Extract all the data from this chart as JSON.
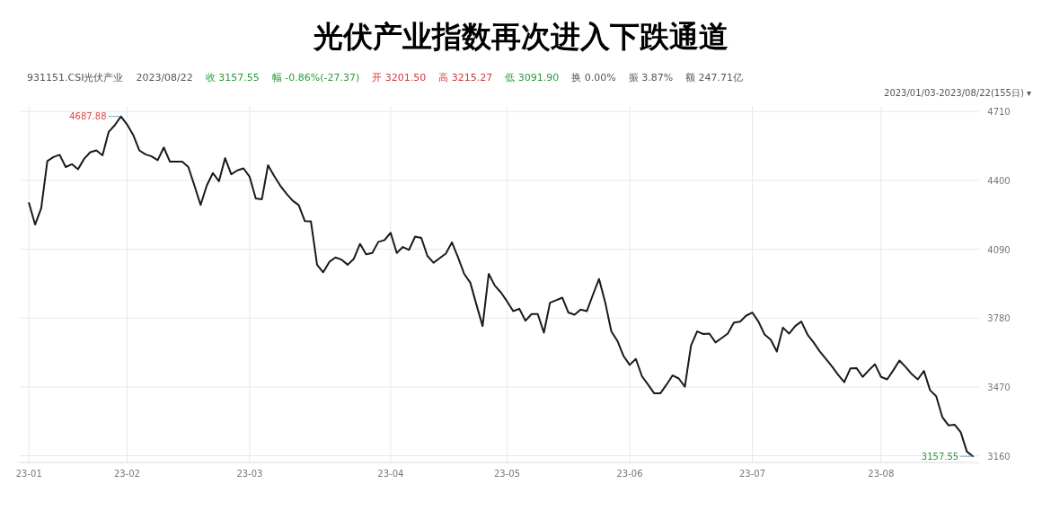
{
  "chart_data": {
    "type": "line",
    "title": "光伏产业指数再次进入下跌通道",
    "annotations": [
      "931151.CSI光伏产业",
      "2023/08/22",
      "收 3157.55",
      "幅 -0.86%(-27.37)",
      "开 3201.50",
      "高 3215.27",
      "低 3091.90",
      "换 0.00%",
      "振 3.87%",
      "额 247.71亿",
      "2023/01/03-2023/08/22(155日) ▾",
      "4687.88",
      "3157.55"
    ],
    "categories": [
      "23-01",
      null,
      null,
      null,
      null,
      null,
      null,
      null,
      null,
      null,
      null,
      null,
      null,
      null,
      null,
      null,
      "23-02",
      null,
      null,
      null,
      null,
      null,
      null,
      null,
      null,
      null,
      null,
      null,
      null,
      null,
      null,
      null,
      null,
      null,
      null,
      null,
      "23-03",
      null,
      null,
      null,
      null,
      null,
      null,
      null,
      null,
      null,
      null,
      null,
      null,
      null,
      null,
      null,
      null,
      null,
      null,
      null,
      null,
      null,
      null,
      "23-04",
      null,
      null,
      null,
      null,
      null,
      null,
      null,
      null,
      null,
      null,
      null,
      null,
      null,
      null,
      null,
      null,
      null,
      null,
      "23-05",
      null,
      null,
      null,
      null,
      null,
      null,
      null,
      null,
      null,
      null,
      null,
      null,
      null,
      null,
      null,
      null,
      null,
      null,
      null,
      "23-06",
      null,
      null,
      null,
      null,
      null,
      null,
      null,
      null,
      null,
      null,
      null,
      null,
      null,
      null,
      null,
      null,
      null,
      null,
      null,
      "23-07",
      null,
      null,
      null,
      null,
      null,
      null,
      null,
      null,
      null,
      null,
      null,
      null,
      null,
      null,
      null,
      null,
      null,
      null,
      null,
      null,
      "23-08",
      null,
      null,
      null,
      null,
      null,
      null,
      null,
      null,
      null,
      null,
      null,
      null,
      null,
      null,
      null
    ],
    "series": [
      {
        "color": "#1a1a1a",
        "values": [
          4298,
          4201,
          4275,
          4487,
          4505,
          4515,
          4460,
          4473,
          4450,
          4497,
          4527,
          4535,
          4513,
          4618,
          4648,
          4687.88,
          4652,
          4605,
          4535,
          4517,
          4508,
          4491,
          4548,
          4484,
          4484,
          4484,
          4460,
          4376,
          4289,
          4376,
          4433,
          4396,
          4500,
          4427,
          4445,
          4454,
          4416,
          4319,
          4315,
          4468,
          4420,
          4376,
          4340,
          4309,
          4289,
          4217,
          4215,
          4020,
          3986,
          4033,
          4053,
          4043,
          4020,
          4047,
          4114,
          4067,
          4073,
          4123,
          4131,
          4164,
          4073,
          4100,
          4087,
          4147,
          4141,
          4060,
          4029,
          4050,
          4070,
          4121,
          4053,
          3979,
          3939,
          3840,
          3744,
          3979,
          3926,
          3895,
          3855,
          3811,
          3822,
          3768,
          3798,
          3798,
          3714,
          3849,
          3860,
          3872,
          3805,
          3795,
          3818,
          3811,
          3885,
          3956,
          3851,
          3720,
          3677,
          3609,
          3569,
          3596,
          3518,
          3480,
          3441,
          3441,
          3480,
          3522,
          3508,
          3471,
          3656,
          3720,
          3708,
          3710,
          3670,
          3690,
          3710,
          3760,
          3764,
          3791,
          3805,
          3764,
          3706,
          3683,
          3629,
          3737,
          3710,
          3744,
          3764,
          3706,
          3670,
          3630,
          3596,
          3562,
          3525,
          3491,
          3553,
          3555,
          3515,
          3545,
          3572,
          3515,
          3504,
          3545,
          3589,
          3560,
          3528,
          3504,
          3542,
          3455,
          3428,
          3334,
          3297,
          3300,
          3266,
          3179,
          3157.55
        ]
      }
    ],
    "ylim": [
      3130,
      4735
    ],
    "yticks": [
      3160,
      3470,
      3780,
      4090,
      4400,
      4710
    ],
    "grid": true,
    "marker": "none",
    "line_style": "solid"
  }
}
